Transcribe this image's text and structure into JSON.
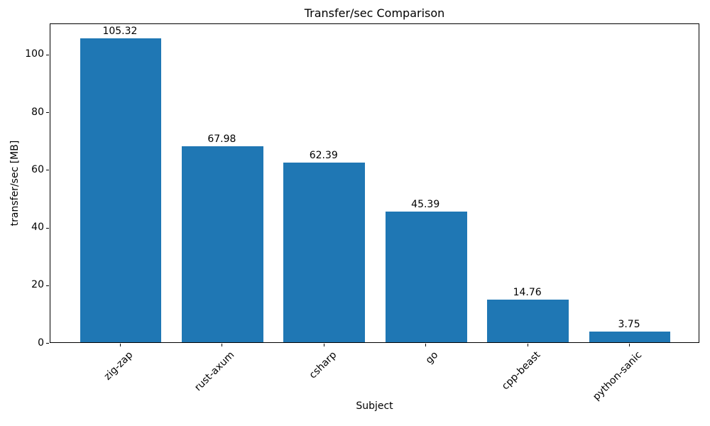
{
  "chart_data": {
    "type": "bar",
    "title": "Transfer/sec Comparison",
    "xlabel": "Subject",
    "ylabel": "transfer/sec [MB]",
    "categories": [
      "zig-zap",
      "rust-axum",
      "csharp",
      "go",
      "cpp-beast",
      "python-sanic"
    ],
    "values": [
      105.32,
      67.98,
      62.39,
      45.39,
      14.76,
      3.75
    ],
    "value_labels": [
      "105.32",
      "67.98",
      "62.39",
      "45.39",
      "14.76",
      "3.75"
    ],
    "yticks": [
      0,
      20,
      40,
      60,
      80,
      100
    ],
    "ytick_labels": [
      "0",
      "20",
      "40",
      "60",
      "80",
      "100"
    ],
    "ylim": [
      0,
      110.8
    ],
    "bar_color": "#1f77b4",
    "axis_color": "#000000",
    "background_color": "#ffffff",
    "grid": false,
    "xtick_rotation_deg": 45,
    "legend_position": "none"
  }
}
